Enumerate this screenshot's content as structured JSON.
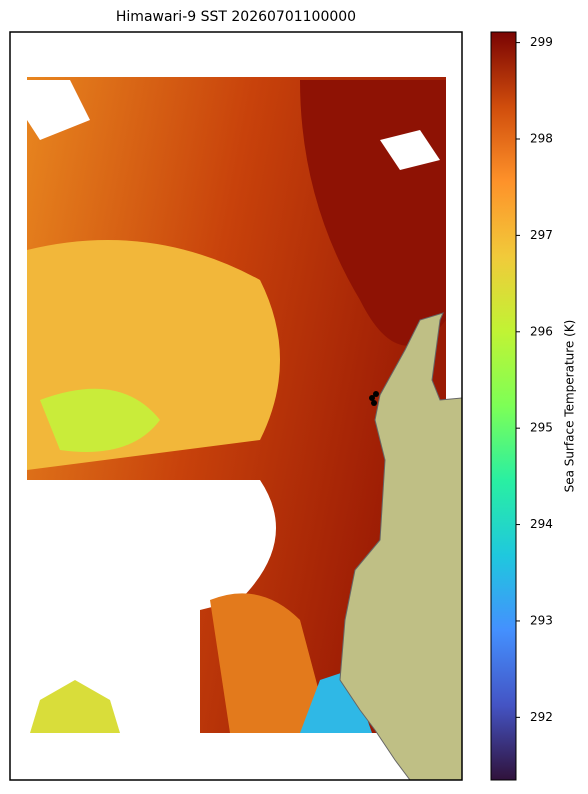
{
  "title": "Himawari-9 SST 20260701100000",
  "colorbar": {
    "label": "Sea Surface Temperature (K)",
    "colormap": "turbo",
    "range": [
      291.35,
      299.11
    ],
    "ticks": [
      292,
      293,
      294,
      295,
      296,
      297,
      298,
      299
    ]
  }
}
